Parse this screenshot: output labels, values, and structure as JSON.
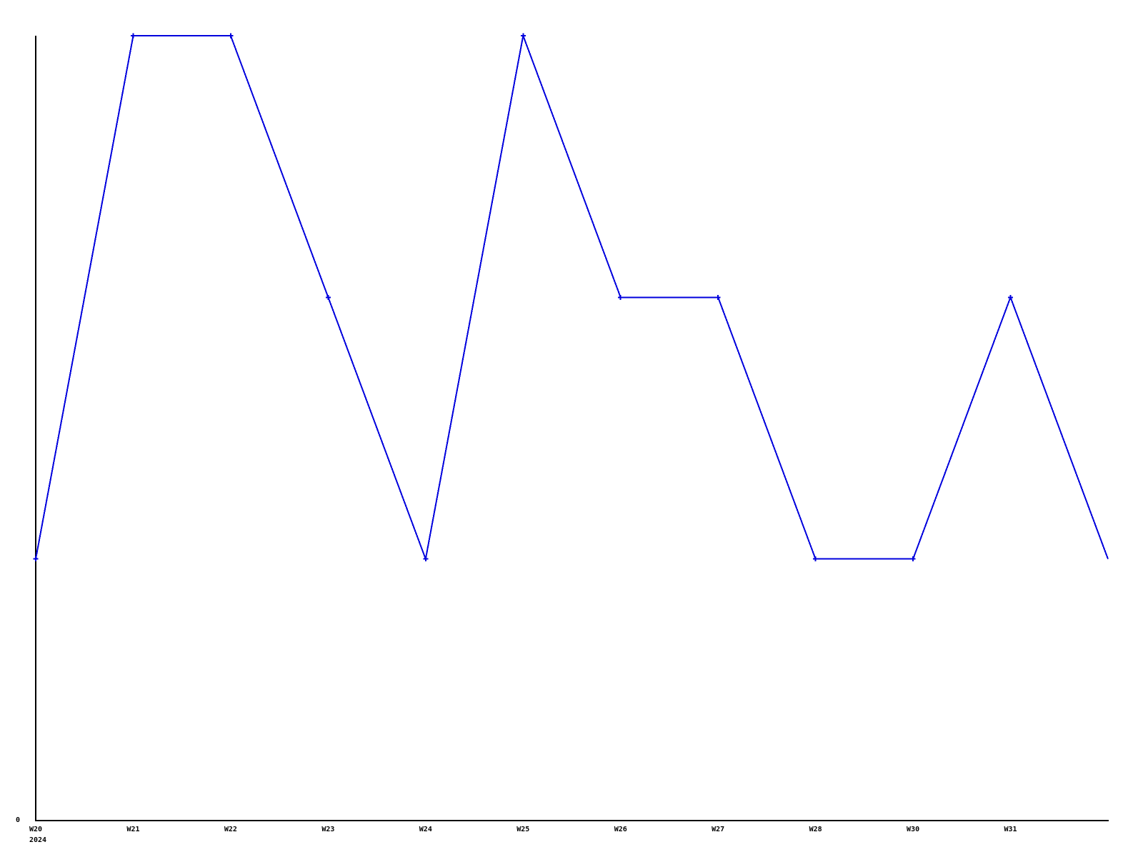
{
  "chart_data": {
    "type": "line",
    "title": "",
    "xlabel": "",
    "ylabel": "",
    "x_tick_labels": [
      "W20",
      "W21",
      "W22",
      "W23",
      "W24",
      "W25",
      "W26",
      "W27",
      "W28",
      "W30",
      "W31"
    ],
    "x_first_tick_second_line": "2024",
    "y_tick_labels": [
      "0"
    ],
    "ylim": [
      0,
      3
    ],
    "grid": false,
    "legend": null,
    "background_color": "#ffffff",
    "axis_color": "#000000",
    "series": [
      {
        "name": "series-1",
        "color": "#0000dd",
        "marker": "plus",
        "last_point_has_marker": false,
        "values": [
          1,
          3,
          3,
          2,
          1,
          3,
          2,
          2,
          1,
          1,
          2,
          1
        ]
      }
    ]
  }
}
